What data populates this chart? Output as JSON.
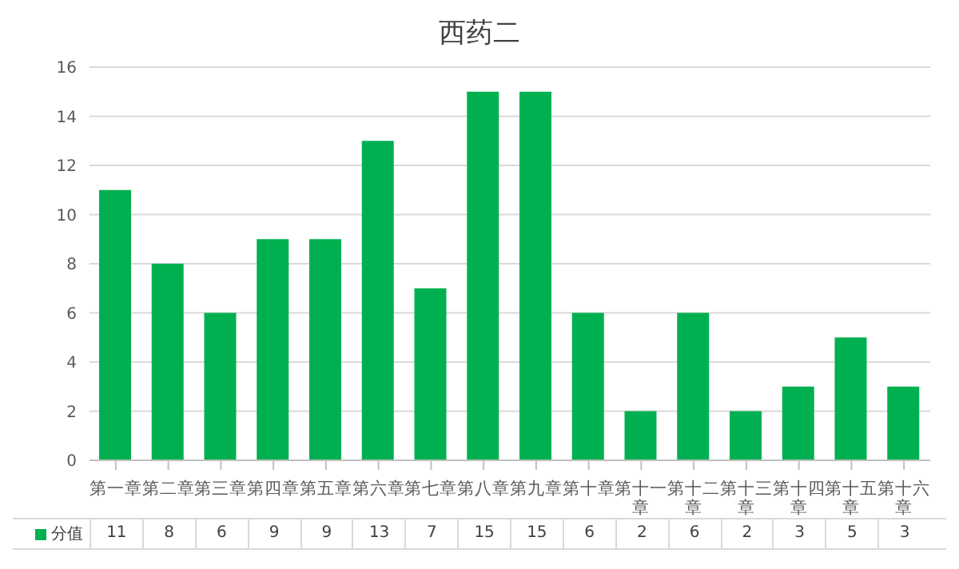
{
  "chart_data": {
    "type": "bar",
    "title": "西药二",
    "categories": [
      "第一章",
      "第二章",
      "第三章",
      "第四章",
      "第五章",
      "第六章",
      "第七章",
      "第八章",
      "第九章",
      "第十章",
      "第十一章",
      "第十二章",
      "第十三章",
      "第十四章",
      "第十五章",
      "第十六章"
    ],
    "series": [
      {
        "name": "分值",
        "color": "#00b050",
        "values": [
          11,
          8,
          6,
          9,
          9,
          13,
          7,
          15,
          15,
          6,
          2,
          6,
          2,
          3,
          5,
          3
        ]
      }
    ],
    "ylim": [
      0,
      16
    ],
    "yticks": [
      0,
      2,
      4,
      6,
      8,
      10,
      12,
      14,
      16
    ],
    "grid": "y",
    "legend": "bottom",
    "data_labels": true
  }
}
